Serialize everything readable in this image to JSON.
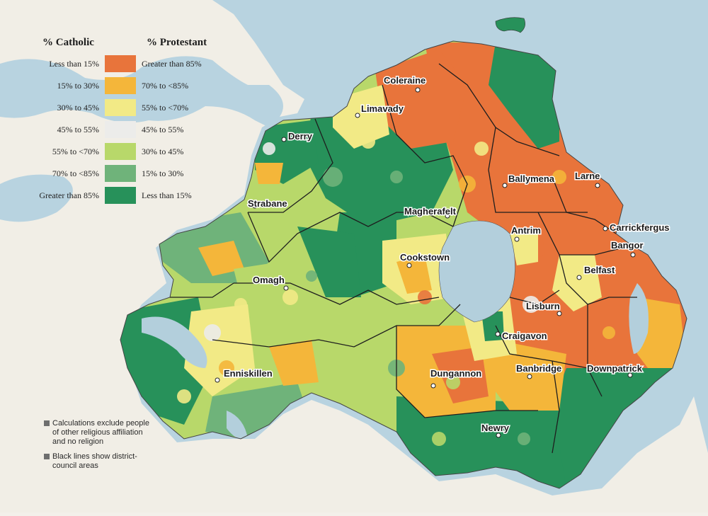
{
  "legend": {
    "catholic_title": "% Catholic",
    "protestant_title": "% Protestant",
    "classes": [
      {
        "catholic": "Less than 15%",
        "protestant": "Greater than 85%",
        "color": "#e8743b"
      },
      {
        "catholic": "15% to 30%",
        "protestant": "70% to <85%",
        "color": "#f4b63a"
      },
      {
        "catholic": "30% to 45%",
        "protestant": "55% to <70%",
        "color": "#f2ea86"
      },
      {
        "catholic": "45% to 55%",
        "protestant": "45% to 55%",
        "color": "#ececea"
      },
      {
        "catholic": "55% to <70%",
        "protestant": "30% to 45%",
        "color": "#b8d86a"
      },
      {
        "catholic": "70% to <85%",
        "protestant": "15% to 30%",
        "color": "#6fb37a"
      },
      {
        "catholic": "Greater than 85%",
        "protestant": "Less than 15%",
        "color": "#27915a"
      }
    ]
  },
  "notes": [
    "Calculations exclude people of other religious affiliation and no religion",
    "Black lines show district-council areas"
  ],
  "towns": [
    "Coleraine",
    "Limavady",
    "Derry",
    "Strabane",
    "Magherafelt",
    "Ballymena",
    "Larne",
    "Carrickfergus",
    "Antrim",
    "Bangor",
    "Belfast",
    "Cookstown",
    "Omagh",
    "Lisburn",
    "Craigavon",
    "Enniskillen",
    "Dungannon",
    "Banbridge",
    "Downpatrick",
    "Newry"
  ],
  "colors": {
    "sea": "#b8d3e0",
    "land_outside": "#f1eee6",
    "lough": "#b3cfdc"
  }
}
